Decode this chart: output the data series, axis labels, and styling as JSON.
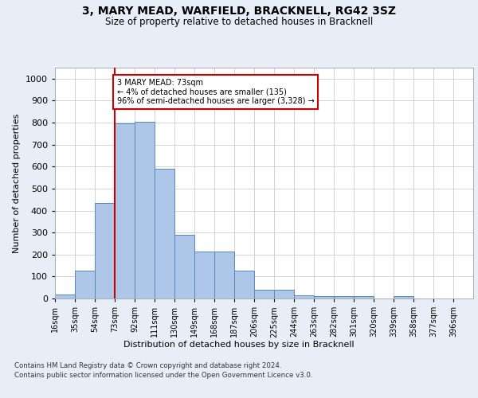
{
  "title": "3, MARY MEAD, WARFIELD, BRACKNELL, RG42 3SZ",
  "subtitle": "Size of property relative to detached houses in Bracknell",
  "xlabel": "Distribution of detached houses by size in Bracknell",
  "ylabel": "Number of detached properties",
  "bar_values": [
    18,
    125,
    435,
    795,
    805,
    590,
    290,
    212,
    212,
    127,
    40,
    40,
    15,
    12,
    10,
    10,
    0,
    10,
    0,
    0,
    0
  ],
  "bar_labels": [
    "16sqm",
    "35sqm",
    "54sqm",
    "73sqm",
    "92sqm",
    "111sqm",
    "130sqm",
    "149sqm",
    "168sqm",
    "187sqm",
    "206sqm",
    "225sqm",
    "244sqm",
    "263sqm",
    "282sqm",
    "301sqm",
    "320sqm",
    "339sqm",
    "358sqm",
    "377sqm",
    "396sqm"
  ],
  "bar_color": "#aec7e8",
  "bar_edge_color": "#5588bb",
  "property_size_bin_index": 3,
  "property_label": "3 MARY MEAD: 73sqm",
  "pct_smaller": 4,
  "pct_smaller_count": 135,
  "pct_larger": 96,
  "pct_larger_count": 3328,
  "vline_color": "#cc0000",
  "annotation_box_color": "#cc0000",
  "ylim": [
    0,
    1050
  ],
  "yticks": [
    0,
    100,
    200,
    300,
    400,
    500,
    600,
    700,
    800,
    900,
    1000
  ],
  "background_color": "#e8eef8",
  "plot_bg_color": "#ffffff",
  "footer_line1": "Contains HM Land Registry data © Crown copyright and database right 2024.",
  "footer_line2": "Contains public sector information licensed under the Open Government Licence v3.0.",
  "bin_starts": [
    16,
    35,
    54,
    73,
    92,
    111,
    130,
    149,
    168,
    187,
    206,
    225,
    244,
    263,
    282,
    301,
    320,
    339,
    358,
    377,
    396
  ],
  "bin_width": 19
}
